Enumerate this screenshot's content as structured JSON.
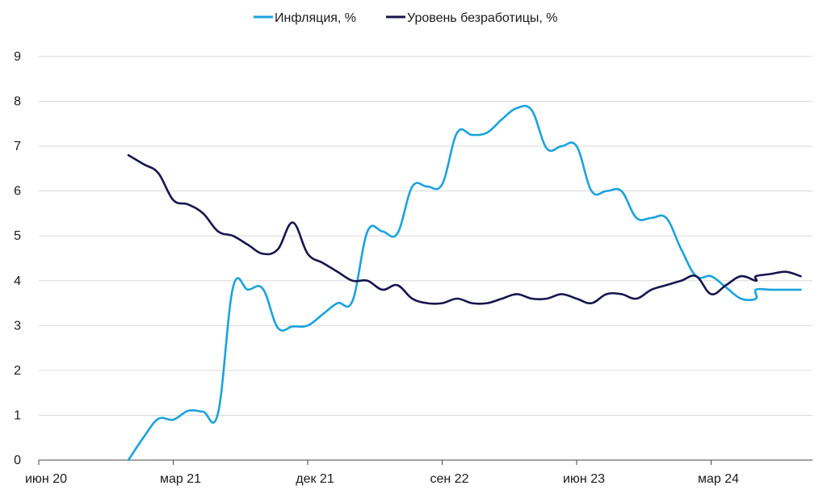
{
  "chart_data": {
    "type": "line",
    "title": "",
    "xlabel": "",
    "ylabel": "",
    "ylim": [
      0,
      9
    ],
    "yticks": [
      "0",
      "1",
      "2",
      "3",
      "4",
      "5",
      "6",
      "7",
      "8",
      "9"
    ],
    "xticks": [
      "июн 20",
      "мар 21",
      "дек 21",
      "сен 22",
      "июн 23",
      "мар 24"
    ],
    "grid": "horizontal",
    "legend_position": "top",
    "series": [
      {
        "name": "Инфляция, %",
        "color": "#1aa3dc",
        "points": [
          [
            "2020-12",
            0.0
          ],
          [
            "2021-01",
            0.5
          ],
          [
            "2021-02",
            0.92
          ],
          [
            "2021-03",
            0.9
          ],
          [
            "2021-04",
            1.1
          ],
          [
            "2021-05",
            1.08
          ],
          [
            "2021-06",
            1.05
          ],
          [
            "2021-07",
            3.85
          ],
          [
            "2021-08",
            3.8
          ],
          [
            "2021-09",
            3.82
          ],
          [
            "2021-10",
            2.95
          ],
          [
            "2021-11",
            2.98
          ],
          [
            "2021-12",
            3.0
          ],
          [
            "2022-01",
            3.25
          ],
          [
            "2022-02",
            3.5
          ],
          [
            "2022-03",
            3.55
          ],
          [
            "2022-04",
            5.1
          ],
          [
            "2022-05",
            5.1
          ],
          [
            "2022-06",
            5.05
          ],
          [
            "2022-07",
            6.1
          ],
          [
            "2022-08",
            6.1
          ],
          [
            "2022-09",
            6.15
          ],
          [
            "2022-10",
            7.3
          ],
          [
            "2022-11",
            7.25
          ],
          [
            "2022-12",
            7.3
          ],
          [
            "2023-01",
            7.6
          ],
          [
            "2023-02",
            7.85
          ],
          [
            "2023-03",
            7.8
          ],
          [
            "2023-04",
            6.95
          ],
          [
            "2023-05",
            7.0
          ],
          [
            "2023-06",
            7.0
          ],
          [
            "2023-07",
            6.0
          ],
          [
            "2023-08",
            6.0
          ],
          [
            "2023-09",
            6.0
          ],
          [
            "2023-10",
            5.4
          ],
          [
            "2023-11",
            5.4
          ],
          [
            "2023-12",
            5.4
          ],
          [
            "2024-01",
            4.7
          ],
          [
            "2024-02",
            4.1
          ],
          [
            "2024-03",
            4.1
          ],
          [
            "2024-04",
            3.85
          ],
          [
            "2024-05",
            3.6
          ],
          [
            "2024-06",
            3.6
          ],
          [
            "2024-06",
            3.8
          ],
          [
            "2024-07",
            3.8
          ],
          [
            "2024-08",
            3.8
          ],
          [
            "2024-09",
            3.8
          ]
        ]
      },
      {
        "name": "Уровень безработицы, %",
        "color": "#16164d",
        "points": [
          [
            "2020-12",
            6.8
          ],
          [
            "2021-01",
            6.6
          ],
          [
            "2021-02",
            6.4
          ],
          [
            "2021-03",
            5.8
          ],
          [
            "2021-04",
            5.7
          ],
          [
            "2021-05",
            5.5
          ],
          [
            "2021-06",
            5.1
          ],
          [
            "2021-07",
            5.0
          ],
          [
            "2021-08",
            4.8
          ],
          [
            "2021-09",
            4.6
          ],
          [
            "2021-10",
            4.7
          ],
          [
            "2021-11",
            5.3
          ],
          [
            "2021-12",
            4.6
          ],
          [
            "2022-01",
            4.4
          ],
          [
            "2022-02",
            4.2
          ],
          [
            "2022-03",
            4.0
          ],
          [
            "2022-04",
            4.0
          ],
          [
            "2022-05",
            3.8
          ],
          [
            "2022-06",
            3.9
          ],
          [
            "2022-07",
            3.6
          ],
          [
            "2022-08",
            3.5
          ],
          [
            "2022-09",
            3.5
          ],
          [
            "2022-10",
            3.6
          ],
          [
            "2022-11",
            3.5
          ],
          [
            "2022-12",
            3.5
          ],
          [
            "2023-01",
            3.6
          ],
          [
            "2023-02",
            3.7
          ],
          [
            "2023-03",
            3.6
          ],
          [
            "2023-04",
            3.6
          ],
          [
            "2023-05",
            3.7
          ],
          [
            "2023-06",
            3.6
          ],
          [
            "2023-07",
            3.5
          ],
          [
            "2023-08",
            3.7
          ],
          [
            "2023-09",
            3.7
          ],
          [
            "2023-10",
            3.6
          ],
          [
            "2023-11",
            3.8
          ],
          [
            "2023-12",
            3.9
          ],
          [
            "2024-01",
            4.0
          ],
          [
            "2024-02",
            4.1
          ],
          [
            "2024-03",
            3.7
          ],
          [
            "2024-04",
            3.9
          ],
          [
            "2024-05",
            4.1
          ],
          [
            "2024-06",
            4.0
          ],
          [
            "2024-06",
            4.1
          ],
          [
            "2024-07",
            4.15
          ],
          [
            "2024-08",
            4.2
          ],
          [
            "2024-09",
            4.1
          ]
        ]
      }
    ]
  }
}
